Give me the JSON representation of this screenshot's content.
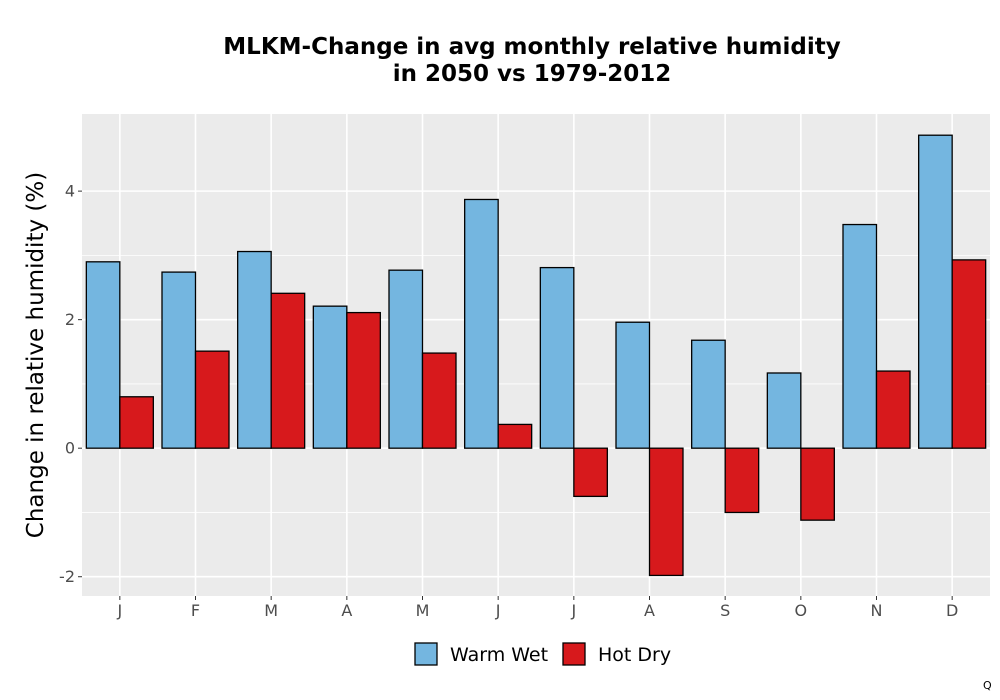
{
  "chart_data": {
    "type": "bar",
    "title_lines": [
      "MLKM-Change in avg monthly relative humidity",
      "in 2050 vs 1979-2012"
    ],
    "xlabel": "",
    "ylabel": "Change in relative humidity (%)",
    "categories": [
      "J",
      "F",
      "M",
      "A",
      "M",
      "J",
      "J",
      "A",
      "S",
      "O",
      "N",
      "D"
    ],
    "series": [
      {
        "name": "Warm Wet",
        "color": "#74b6e0",
        "values": [
          2.9,
          2.74,
          3.06,
          2.21,
          2.77,
          3.87,
          2.81,
          1.96,
          1.68,
          1.17,
          3.48,
          4.87
        ]
      },
      {
        "name": "Hot Dry",
        "color": "#d7191c",
        "values": [
          0.8,
          1.51,
          2.41,
          2.11,
          1.48,
          0.37,
          -0.75,
          -1.98,
          -1.0,
          -1.12,
          1.2,
          2.93
        ]
      }
    ],
    "ylim": [
      -2.3,
      5.2
    ],
    "yticks": [
      -2,
      0,
      2,
      4
    ],
    "grid": true,
    "legend_position": "bottom",
    "panel_background": "#ebebeb"
  },
  "corner_mark": "Q"
}
